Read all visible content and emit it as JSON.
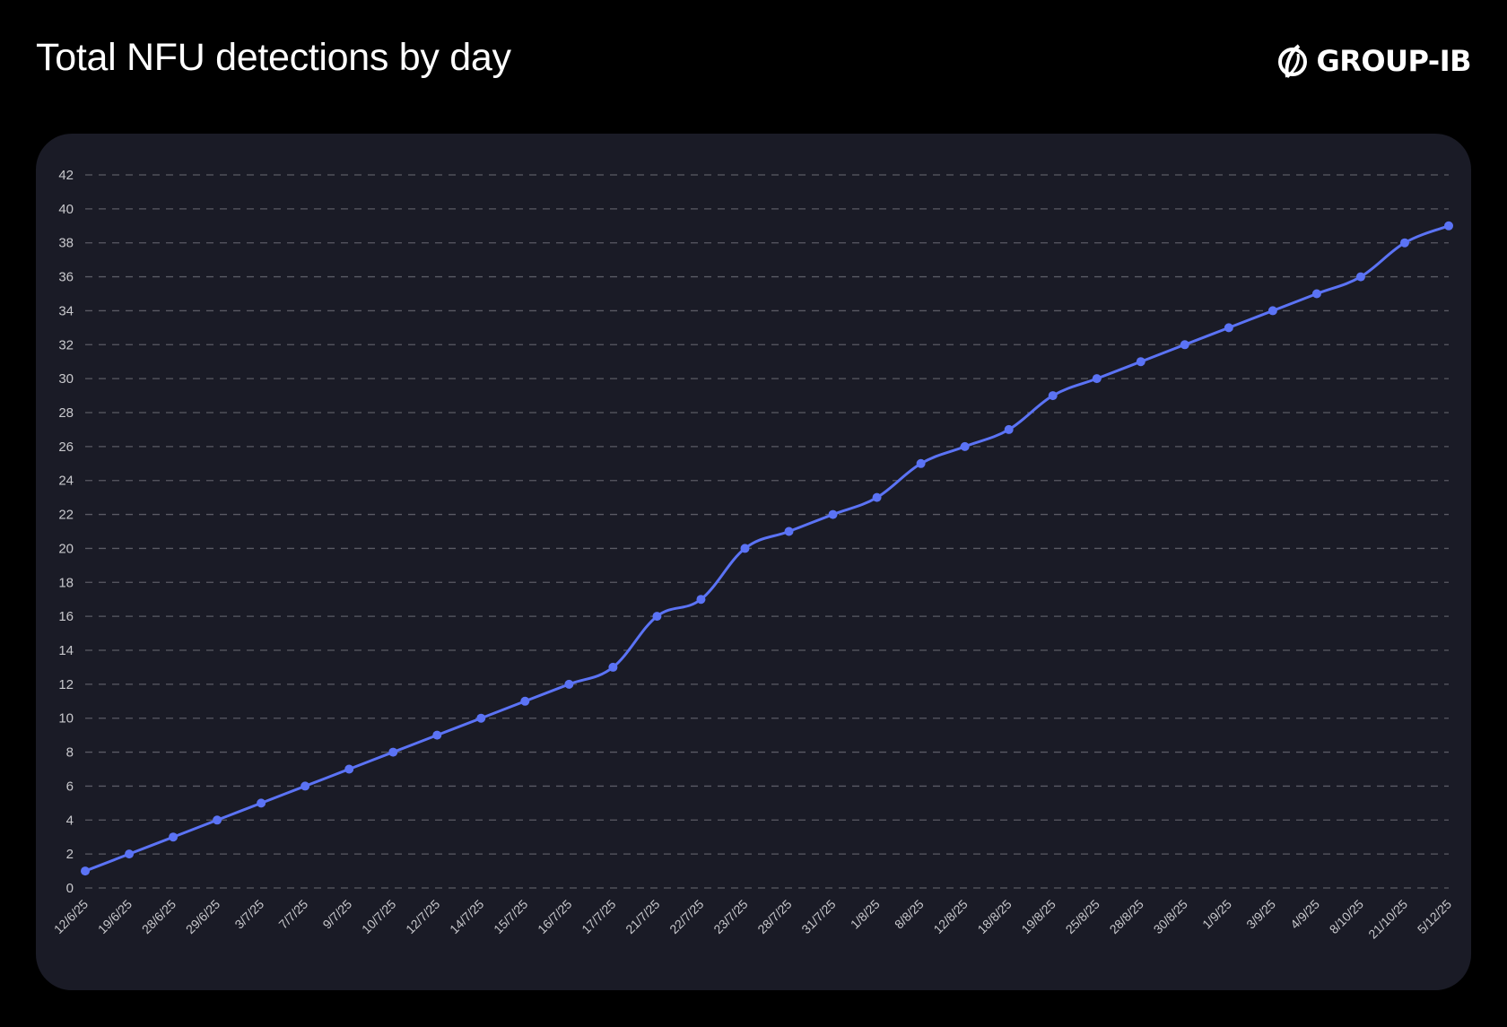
{
  "header": {
    "title": "Total NFU detections by day",
    "logo_text": "GROUP-IB",
    "logo_icon": "group-ib-leaf-icon"
  },
  "colors": {
    "background": "#000000",
    "panel": "#1a1b26",
    "line": "#5b73f5",
    "grid": "#5a5b64",
    "text": "#c8c8cc"
  },
  "chart_data": {
    "type": "line",
    "title": "Total NFU detections by day",
    "xlabel": "",
    "ylabel": "",
    "ylim": [
      0,
      42
    ],
    "yticks": [
      0,
      2,
      4,
      6,
      8,
      10,
      12,
      14,
      16,
      18,
      20,
      22,
      24,
      26,
      28,
      30,
      32,
      34,
      36,
      38,
      40,
      42
    ],
    "grid": "horizontal-dashed",
    "legend": "none",
    "categories": [
      "12/6/25",
      "19/6/25",
      "28/6/25",
      "29/6/25",
      "3/7/25",
      "7/7/25",
      "9/7/25",
      "10/7/25",
      "12/7/25",
      "14/7/25",
      "15/7/25",
      "16/7/25",
      "17/7/25",
      "21/7/25",
      "22/7/25",
      "23/7/25",
      "28/7/25",
      "31/7/25",
      "1/8/25",
      "8/8/25",
      "12/8/25",
      "18/8/25",
      "19/8/25",
      "25/8/25",
      "28/8/25",
      "30/8/25",
      "1/9/25",
      "3/9/25",
      "4/9/25",
      "8/10/25",
      "21/10/25",
      "5/12/25"
    ],
    "series": [
      {
        "name": "Total NFU detections",
        "values": [
          1,
          2,
          3,
          4,
          5,
          6,
          7,
          8,
          9,
          10,
          11,
          12,
          13,
          16,
          17,
          20,
          21,
          22,
          23,
          25,
          26,
          27,
          29,
          30,
          31,
          32,
          33,
          34,
          35,
          36,
          38,
          39
        ]
      }
    ]
  }
}
